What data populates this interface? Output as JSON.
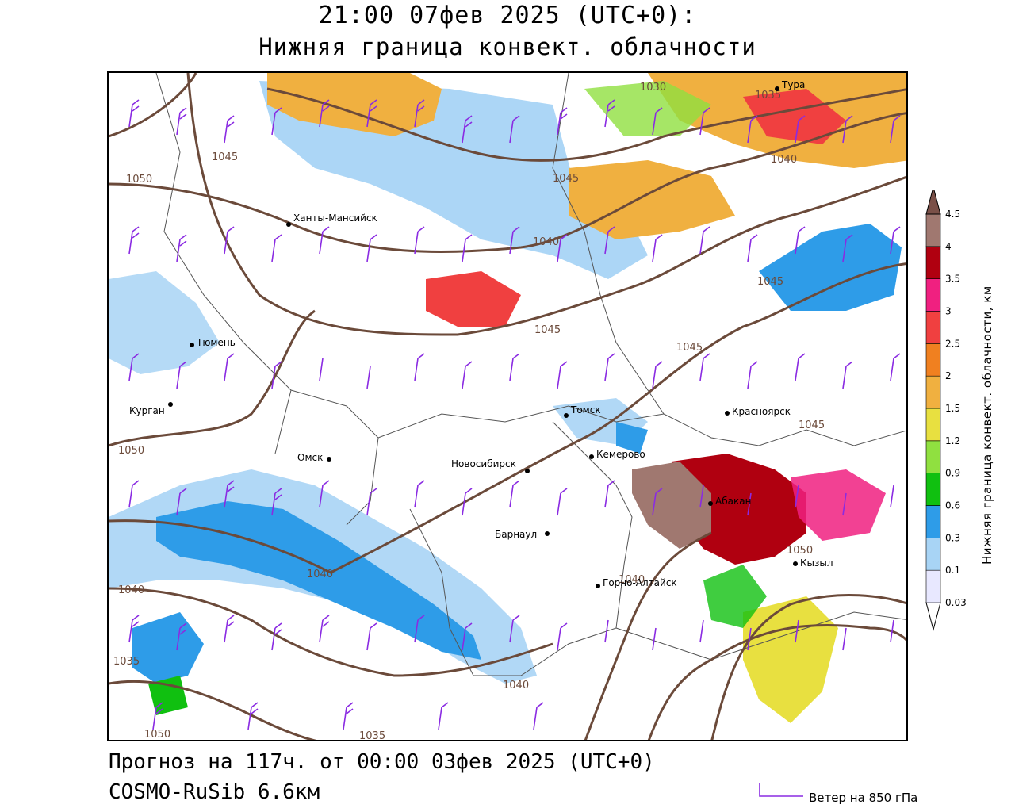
{
  "title": {
    "line1": "21:00 07фев 2025 (UTC+0):",
    "line2": "Нижняя граница конвект. облачности"
  },
  "footer": {
    "forecast": "Прогноз на 117ч. от 00:00 03фев 2025 (UTC+0)",
    "model": "COSMO-RuSib 6.6км"
  },
  "wind_legend": {
    "label": "Ветер на 850 гПа",
    "color": "#8a2be2"
  },
  "colorbar": {
    "title": "Нижняя граница конвект. облачности, км",
    "ticks": [
      "0.03",
      "0.1",
      "0.3",
      "0.6",
      "0.9",
      "1.2",
      "1.5",
      "2",
      "2.5",
      "3",
      "3.5",
      "4",
      "4.5"
    ],
    "colors": [
      "#ffffff",
      "#e8e8ff",
      "#a8d4f5",
      "#2e9ce8",
      "#10c010",
      "#90e040",
      "#e8e040",
      "#f0b040",
      "#f08020",
      "#f04040",
      "#f02080",
      "#b00010",
      "#a07870",
      "#7a5048"
    ]
  },
  "cities": [
    {
      "name": "Тура"
    },
    {
      "name": "Ханты-Мансийск"
    },
    {
      "name": "Тюмень"
    },
    {
      "name": "Курган"
    },
    {
      "name": "Омск"
    },
    {
      "name": "Томск"
    },
    {
      "name": "Новосибирск"
    },
    {
      "name": "Кемерово"
    },
    {
      "name": "Красноярск"
    },
    {
      "name": "Абакан"
    },
    {
      "name": "Барнаул"
    },
    {
      "name": "Горно-Алтайск"
    },
    {
      "name": "Кызыл"
    }
  ],
  "isobars": [
    "1050",
    "1045",
    "1030",
    "1035",
    "1040",
    "1045",
    "1040",
    "1045",
    "1045",
    "1045",
    "1050",
    "1045",
    "1040",
    "1035",
    "1040",
    "1040",
    "1050",
    "1035",
    "1050",
    "1040"
  ]
}
